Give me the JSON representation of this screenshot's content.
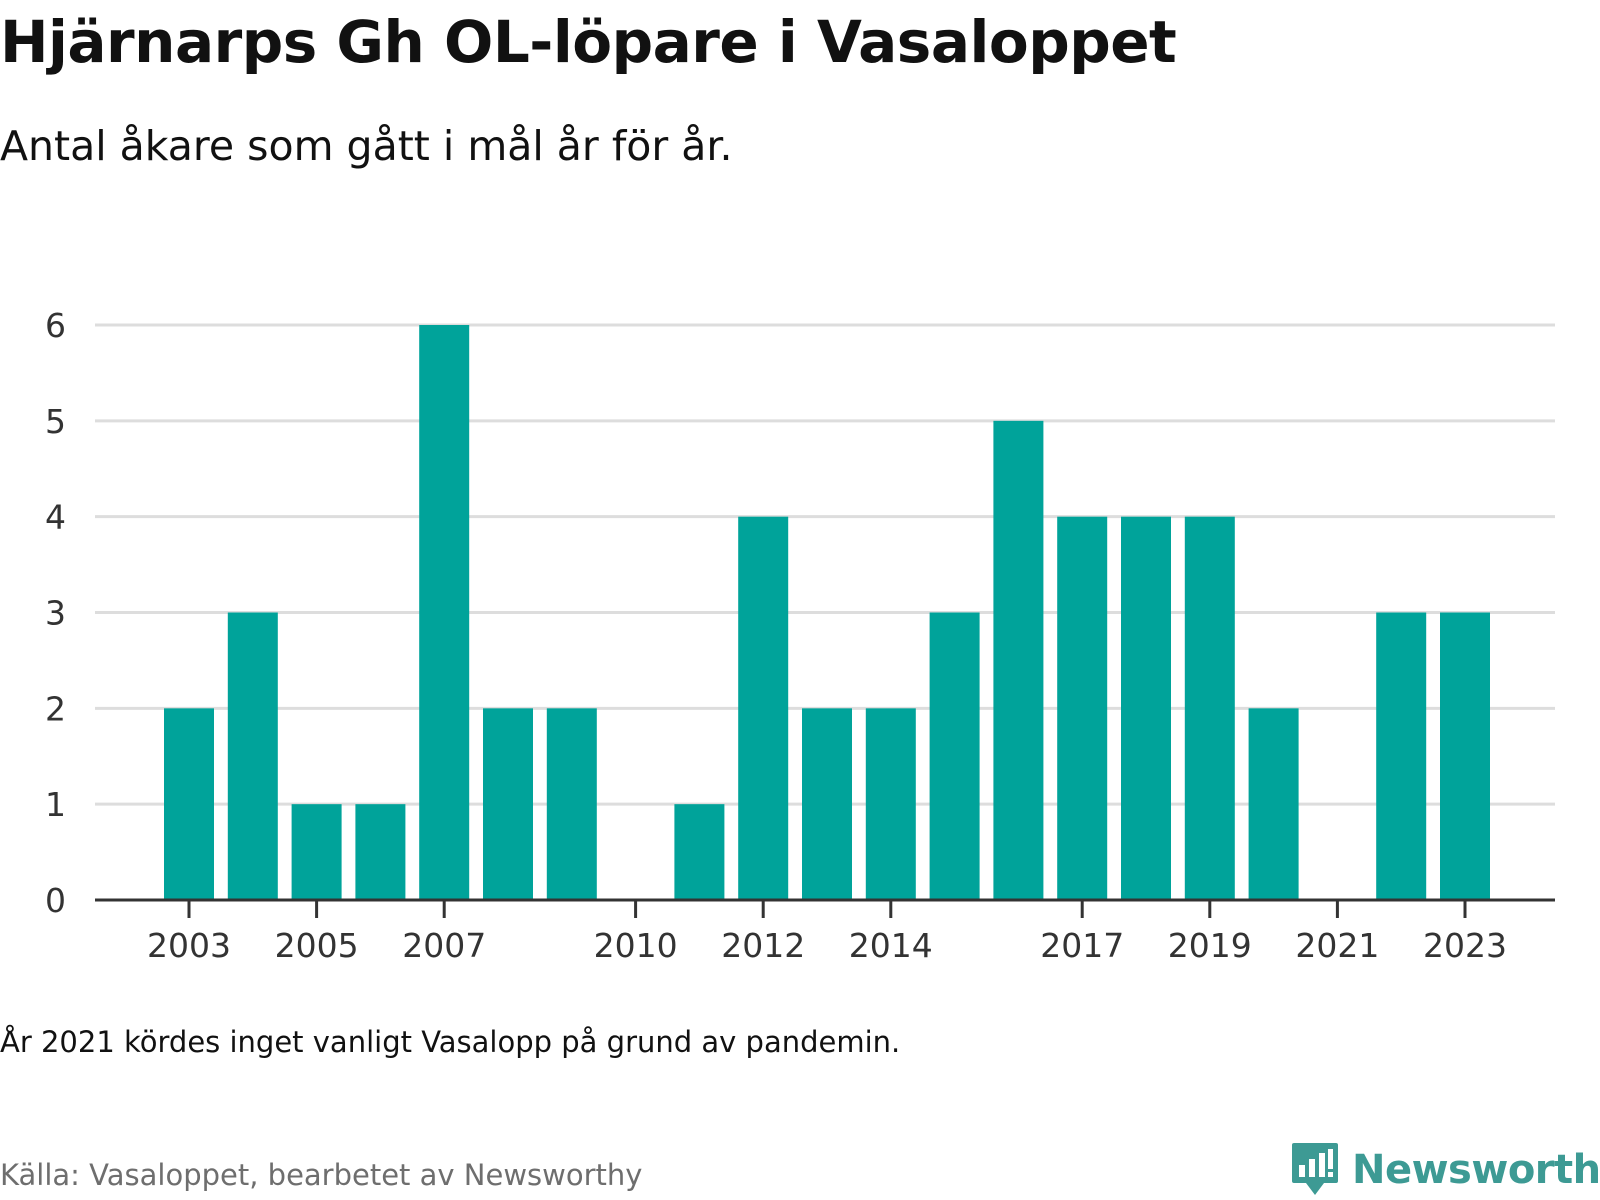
{
  "title": "Hjärnarps Gh OL-löpare i Vasaloppet",
  "subtitle": "Antal åkare som gått i mål år för år.",
  "note": "År 2021 kördes inget vanligt Vasalopp på grund av pandemin.",
  "source": "Källa: Vasaloppet, bearbetet av Newsworthy",
  "brand": {
    "name": "Newsworthy",
    "icon": "newsworthy-logo-icon"
  },
  "colors": {
    "bar": "#00a39a",
    "grid": "#dddddd",
    "axis": "#333333",
    "brand": "#3d9a94"
  },
  "chart_data": {
    "type": "bar",
    "categories": [
      "2003",
      "2004",
      "2005",
      "2006",
      "2007",
      "2008",
      "2009",
      "2010",
      "2011",
      "2012",
      "2013",
      "2014",
      "2015",
      "2016",
      "2017",
      "2018",
      "2019",
      "2020",
      "2021",
      "2022",
      "2023"
    ],
    "values": [
      2,
      3,
      1,
      1,
      6,
      2,
      2,
      0,
      1,
      4,
      2,
      2,
      3,
      5,
      4,
      4,
      4,
      2,
      0,
      3,
      3
    ],
    "x_tick_labels": [
      "2003",
      "2005",
      "2007",
      "2010",
      "2012",
      "2014",
      "2017",
      "2019",
      "2021",
      "2023"
    ],
    "y_ticks": [
      0,
      1,
      2,
      3,
      4,
      5,
      6
    ],
    "ylim": [
      0,
      6
    ],
    "xlabel": "",
    "ylabel": "",
    "grid": true,
    "legend": "none"
  }
}
